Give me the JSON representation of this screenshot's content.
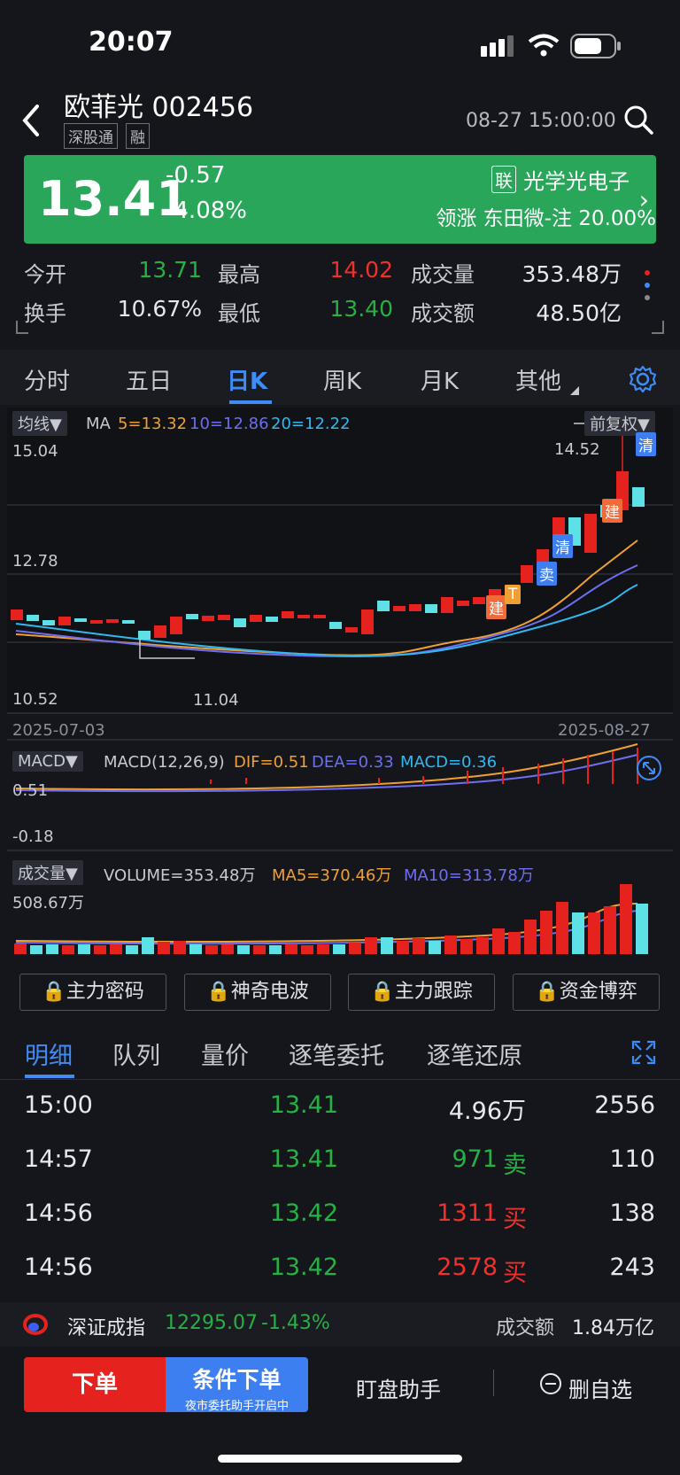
{
  "status_bar": {
    "time": "20:07"
  },
  "header": {
    "stock_name": "欧菲光 002456",
    "tags": [
      "深股通",
      "融"
    ],
    "time": "08-27 15:00:00"
  },
  "quote": {
    "price": "13.41",
    "change": "-0.57",
    "change_pct": "-4.08%",
    "sector_badge": "联",
    "sector_name": "光学光电子",
    "leader": "领涨 东田微-注 20.00%"
  },
  "stats": [
    {
      "label": "今开",
      "value": "13.71",
      "color": "green"
    },
    {
      "label": "最高",
      "value": "14.02",
      "color": "red"
    },
    {
      "label": "成交量",
      "value": "353.48万",
      "color": "white"
    },
    {
      "label": "换手",
      "value": "10.67%",
      "color": "white"
    },
    {
      "label": "最低",
      "value": "13.40",
      "color": "green"
    },
    {
      "label": "成交额",
      "value": "48.50亿",
      "color": "white"
    }
  ],
  "chart_tabs": [
    "分时",
    "五日",
    "日K",
    "周K",
    "月K",
    "其他"
  ],
  "kline": {
    "indicator_label": "均线▼",
    "ma_title": "MA",
    "ma5": "5=13.32",
    "ma10": "10=12.86",
    "ma20": "20=12.22",
    "adjust": "前复权▼",
    "y_top": "15.04",
    "y_mid": "12.78",
    "y_bottom": "10.52",
    "high_marker": "14.52",
    "low_marker": "11.04",
    "date_start": "2025-07-03",
    "date_end": "2025-08-27",
    "signals": [
      "建",
      "T",
      "卖",
      "清",
      "建",
      "清"
    ]
  },
  "macd": {
    "label": "MACD▼",
    "params": "MACD(12,26,9)",
    "dif": "DIF=0.51",
    "dea": "DEA=0.33",
    "macd": "MACD=0.36",
    "y_top": "0.51",
    "y_bottom": "-0.18"
  },
  "volume": {
    "label": "成交量▼",
    "vol": "VOLUME=353.48万",
    "ma5": "MA5=370.46万",
    "ma10": "MA10=313.78万",
    "y_top": "508.67万"
  },
  "tools": [
    "主力密码",
    "神奇电波",
    "主力跟踪",
    "资金博弈"
  ],
  "detail_tabs": [
    "明细",
    "队列",
    "量价",
    "逐笔委托",
    "逐笔还原"
  ],
  "trades": [
    {
      "time": "15:00",
      "price": "13.41",
      "vol": "4.96万",
      "side": "",
      "count": "2556",
      "vcolor": "white"
    },
    {
      "time": "14:57",
      "price": "13.41",
      "vol": "971",
      "side": "卖",
      "count": "110",
      "vcolor": "green"
    },
    {
      "time": "14:56",
      "price": "13.42",
      "vol": "1311",
      "side": "买",
      "count": "138",
      "vcolor": "red"
    },
    {
      "time": "14:56",
      "price": "13.42",
      "vol": "2578",
      "side": "买",
      "count": "243",
      "vcolor": "red"
    }
  ],
  "index_bar": {
    "name": "深证成指",
    "value": "12295.07",
    "pct": "-1.43%",
    "turnover_label": "成交额",
    "turnover": "1.84万亿"
  },
  "actions": {
    "order": "下单",
    "conditional": "条件下单",
    "conditional_sub": "夜市委托助手开启中",
    "monitor": "盯盘助手",
    "remove_fav": "删自选"
  },
  "colors": {
    "up": "#f0302b",
    "down": "#27b043",
    "accent": "#3e8df7",
    "banner": "#2aa65a"
  }
}
